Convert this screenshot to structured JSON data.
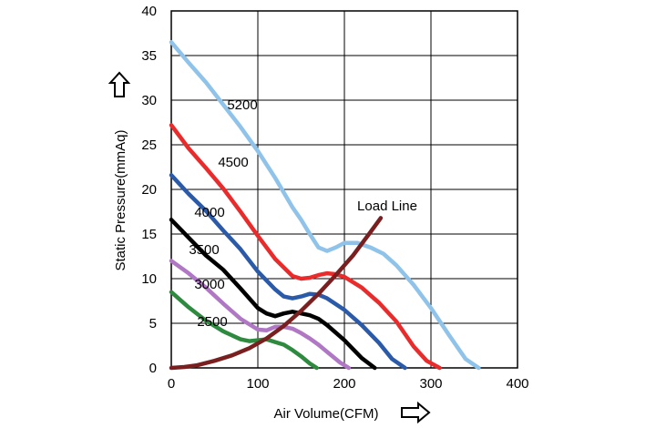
{
  "chart_data": {
    "type": "line",
    "title": "",
    "xlabel": "Air Volume(CFM)",
    "ylabel": "Static Pressure(mmAq)",
    "xlim": [
      0,
      400
    ],
    "ylim": [
      0,
      40
    ],
    "xticks": [
      0,
      100,
      200,
      300,
      400
    ],
    "yticks": [
      0,
      5,
      10,
      15,
      20,
      25,
      30,
      35,
      40
    ],
    "grid": true,
    "legend": "none",
    "axis_arrows": {
      "x": "right-arrow-icon",
      "y": "up-arrow-icon"
    },
    "series": [
      {
        "name": "5200",
        "color": "#8fc3ea",
        "x": [
          0,
          20,
          40,
          60,
          80,
          100,
          120,
          140,
          150,
          160,
          170,
          180,
          190,
          200,
          215,
          230,
          245,
          260,
          280,
          300,
          320,
          340,
          355
        ],
        "y": [
          36.5,
          34.2,
          32.0,
          29.5,
          27.0,
          24.3,
          21.3,
          18.0,
          16.6,
          15.0,
          13.5,
          13.1,
          13.5,
          14.0,
          14.0,
          13.5,
          12.8,
          11.5,
          9.3,
          6.7,
          3.8,
          1.0,
          0
        ]
      },
      {
        "name": "4500",
        "color": "#ea2b2b",
        "x": [
          0,
          20,
          40,
          60,
          80,
          100,
          120,
          140,
          150,
          160,
          170,
          180,
          190,
          200,
          220,
          240,
          260,
          280,
          295,
          310
        ],
        "y": [
          27.2,
          24.6,
          22.4,
          20.1,
          17.5,
          14.8,
          12.2,
          10.3,
          10.0,
          10.1,
          10.4,
          10.6,
          10.5,
          10.2,
          9.0,
          7.3,
          5.2,
          2.4,
          0.8,
          0
        ]
      },
      {
        "name": "4000",
        "color": "#2a5aa8",
        "x": [
          0,
          20,
          40,
          60,
          80,
          100,
          120,
          130,
          140,
          150,
          160,
          170,
          180,
          200,
          220,
          240,
          255,
          270
        ],
        "y": [
          21.6,
          19.5,
          17.6,
          15.4,
          13.3,
          10.8,
          8.8,
          8.0,
          7.8,
          8.0,
          8.3,
          8.2,
          7.8,
          6.5,
          4.8,
          2.8,
          1.0,
          0
        ]
      },
      {
        "name": "3500",
        "color": "#000000",
        "x": [
          0,
          20,
          40,
          60,
          80,
          100,
          110,
          120,
          130,
          140,
          150,
          160,
          170,
          180,
          200,
          220,
          235
        ],
        "y": [
          16.6,
          14.6,
          12.6,
          11.0,
          8.9,
          6.7,
          6.1,
          5.8,
          6.1,
          6.3,
          6.1,
          5.9,
          5.5,
          4.8,
          3.1,
          1.1,
          0
        ]
      },
      {
        "name": "3000",
        "color": "#b077c4",
        "x": [
          0,
          20,
          40,
          60,
          80,
          100,
          110,
          120,
          130,
          140,
          150,
          160,
          170,
          180,
          195,
          205
        ],
        "y": [
          12.0,
          10.6,
          9.0,
          7.2,
          5.5,
          4.3,
          4.2,
          4.6,
          4.6,
          4.4,
          3.9,
          3.3,
          2.6,
          1.8,
          0.6,
          0
        ]
      },
      {
        "name": "2500",
        "color": "#2e8a3e",
        "x": [
          0,
          20,
          40,
          60,
          80,
          90,
          100,
          110,
          120,
          130,
          140,
          150,
          160,
          168
        ],
        "y": [
          8.5,
          6.8,
          5.3,
          4.1,
          3.2,
          3.0,
          3.1,
          3.2,
          2.9,
          2.6,
          2.0,
          1.3,
          0.5,
          0
        ]
      },
      {
        "name": "Load Line",
        "color": "#7a1f1f",
        "x": [
          0,
          15,
          30,
          50,
          70,
          90,
          110,
          130,
          150,
          170,
          190,
          210,
          230,
          242
        ],
        "y": [
          0,
          0.1,
          0.3,
          0.8,
          1.4,
          2.2,
          3.3,
          4.7,
          6.4,
          8.3,
          10.4,
          12.6,
          15.2,
          16.8
        ]
      }
    ]
  }
}
